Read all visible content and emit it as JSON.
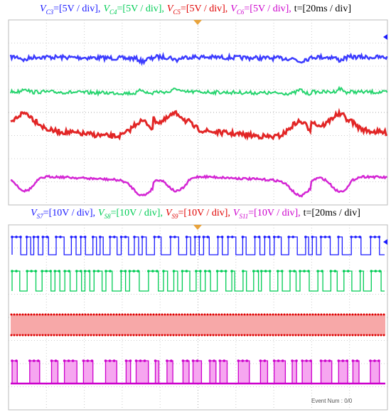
{
  "panels": [
    {
      "caption": {
        "items": [
          {
            "symbol": "V",
            "sub": "C3",
            "scale": "=[5V / div],",
            "color": "#1a1aff"
          },
          {
            "symbol": "V",
            "sub": "C4",
            "scale": "=[5V / div],",
            "color": "#00cc55"
          },
          {
            "symbol": "V",
            "sub": "C5",
            "scale": "=[5V / div],",
            "color": "#e00000"
          },
          {
            "symbol": "V",
            "sub": "C6",
            "scale": "=[5V / div],",
            "color": "#cc00cc"
          }
        ],
        "time": "t=[20ms / div]"
      }
    },
    {
      "caption": {
        "items": [
          {
            "symbol": "V",
            "sub": "S7",
            "scale": "=[10V / div],",
            "color": "#1a1aff"
          },
          {
            "symbol": "V",
            "sub": "S8",
            "scale": "=[10V / div],",
            "color": "#00cc55"
          },
          {
            "symbol": "V",
            "sub": "S9",
            "scale": "=[10V / div],",
            "color": "#e00000"
          },
          {
            "symbol": "V",
            "sub": "S11",
            "scale": "=[10V / div],",
            "color": "#cc00cc"
          }
        ],
        "time": "t=[20ms / div]"
      },
      "status": "Event Num : 0/0"
    }
  ]
}
